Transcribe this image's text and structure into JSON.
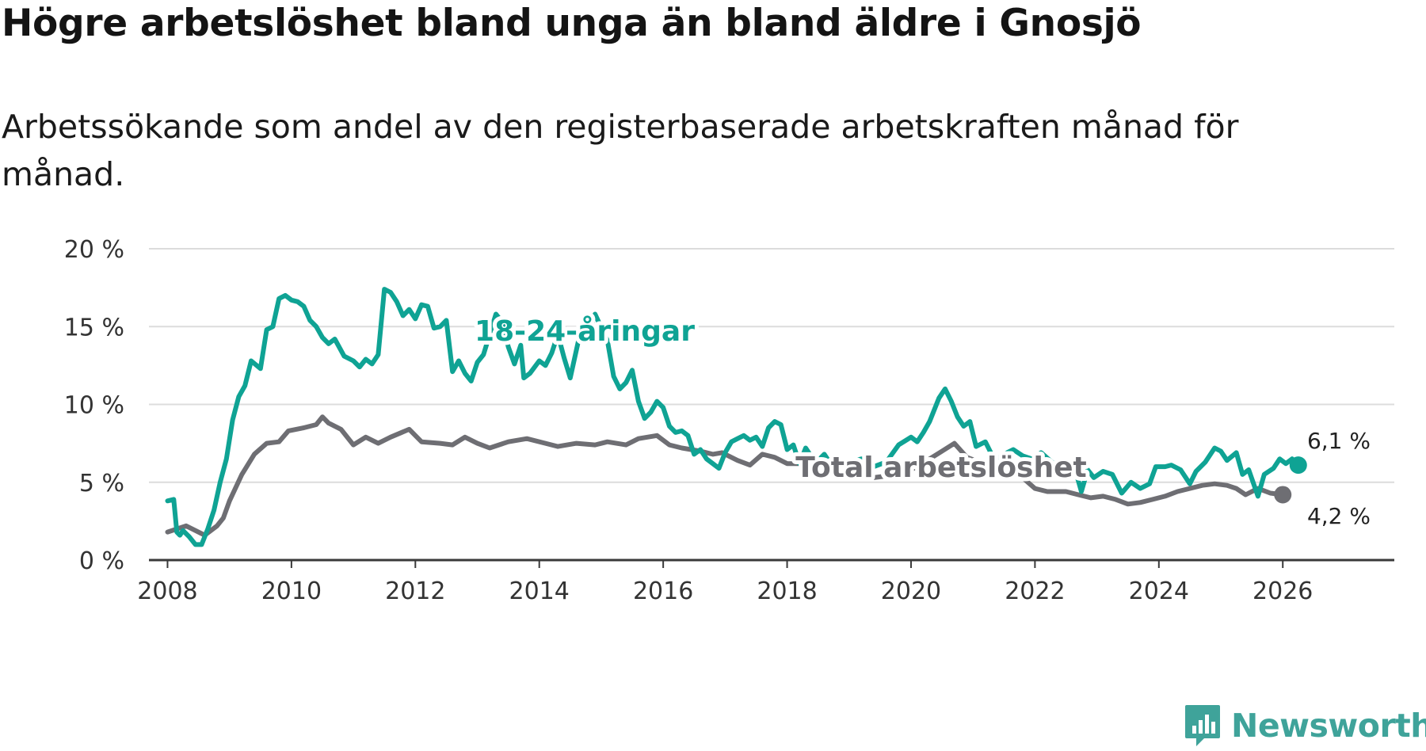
{
  "title": "Högre arbetslöshet bland unga än bland äldre i Gnosjö",
  "subtitle": "Arbetssökande som andel av den registerbaserade arbetskraften månad för månad.",
  "brand": {
    "name": "Newsworthy",
    "color": "#3fa39a"
  },
  "chart_data": {
    "type": "line",
    "title": "Högre arbetslöshet bland unga än bland äldre i Gnosjö",
    "xlabel": "",
    "ylabel": "",
    "xlim": [
      2007.7,
      2027.8
    ],
    "ylim": [
      0,
      20
    ],
    "grid": true,
    "x_ticks": [
      2008,
      2010,
      2012,
      2014,
      2016,
      2018,
      2020,
      2022,
      2024,
      2026
    ],
    "x_tick_labels": [
      "2008",
      "2010",
      "2012",
      "2014",
      "2016",
      "2018",
      "2020",
      "2022",
      "2024",
      "2026"
    ],
    "y_ticks": [
      0,
      5,
      10,
      15,
      20
    ],
    "y_tick_labels": [
      "0 %",
      "5 %",
      "10 %",
      "15 %",
      "20 %"
    ],
    "series": [
      {
        "name": "Total arbetslöshet",
        "label": "Total arbetslöshet",
        "color": "#6e6e73",
        "end_label": "4,2 %",
        "points": [
          [
            2008.0,
            1.8
          ],
          [
            2008.3,
            2.2
          ],
          [
            2008.6,
            1.6
          ],
          [
            2008.8,
            2.2
          ],
          [
            2008.9,
            2.7
          ],
          [
            2009.0,
            3.8
          ],
          [
            2009.2,
            5.5
          ],
          [
            2009.4,
            6.8
          ],
          [
            2009.6,
            7.5
          ],
          [
            2009.8,
            7.6
          ],
          [
            2009.95,
            8.3
          ],
          [
            2010.2,
            8.5
          ],
          [
            2010.4,
            8.7
          ],
          [
            2010.5,
            9.2
          ],
          [
            2010.6,
            8.8
          ],
          [
            2010.8,
            8.4
          ],
          [
            2011.0,
            7.4
          ],
          [
            2011.2,
            7.9
          ],
          [
            2011.4,
            7.5
          ],
          [
            2011.6,
            7.9
          ],
          [
            2011.9,
            8.4
          ],
          [
            2012.1,
            7.6
          ],
          [
            2012.4,
            7.5
          ],
          [
            2012.6,
            7.4
          ],
          [
            2012.8,
            7.9
          ],
          [
            2013.0,
            7.5
          ],
          [
            2013.2,
            7.2
          ],
          [
            2013.5,
            7.6
          ],
          [
            2013.8,
            7.8
          ],
          [
            2014.1,
            7.5
          ],
          [
            2014.3,
            7.3
          ],
          [
            2014.6,
            7.5
          ],
          [
            2014.9,
            7.4
          ],
          [
            2015.1,
            7.6
          ],
          [
            2015.4,
            7.4
          ],
          [
            2015.6,
            7.8
          ],
          [
            2015.9,
            8.0
          ],
          [
            2016.1,
            7.4
          ],
          [
            2016.3,
            7.2
          ],
          [
            2016.6,
            7.0
          ],
          [
            2016.8,
            6.8
          ],
          [
            2016.95,
            6.9
          ],
          [
            2017.2,
            6.4
          ],
          [
            2017.4,
            6.1
          ],
          [
            2017.6,
            6.8
          ],
          [
            2017.8,
            6.6
          ],
          [
            2018.0,
            6.2
          ],
          [
            2018.2,
            6.2
          ],
          [
            2018.5,
            5.9
          ],
          [
            2018.7,
            5.8
          ],
          [
            2019.0,
            5.6
          ],
          [
            2019.2,
            5.4
          ],
          [
            2019.4,
            5.3
          ],
          [
            2019.6,
            5.4
          ],
          [
            2019.9,
            5.6
          ],
          [
            2020.1,
            6.0
          ],
          [
            2020.3,
            6.5
          ],
          [
            2020.5,
            7.0
          ],
          [
            2020.7,
            7.5
          ],
          [
            2020.9,
            6.6
          ],
          [
            2021.1,
            6.3
          ],
          [
            2021.3,
            5.8
          ],
          [
            2021.6,
            5.7
          ],
          [
            2021.8,
            5.3
          ],
          [
            2022.0,
            4.6
          ],
          [
            2022.2,
            4.4
          ],
          [
            2022.5,
            4.4
          ],
          [
            2022.7,
            4.2
          ],
          [
            2022.9,
            4.0
          ],
          [
            2023.1,
            4.1
          ],
          [
            2023.3,
            3.9
          ],
          [
            2023.5,
            3.6
          ],
          [
            2023.7,
            3.7
          ],
          [
            2023.9,
            3.9
          ],
          [
            2024.1,
            4.1
          ],
          [
            2024.3,
            4.4
          ],
          [
            2024.5,
            4.6
          ],
          [
            2024.7,
            4.8
          ],
          [
            2024.9,
            4.9
          ],
          [
            2025.1,
            4.8
          ],
          [
            2025.25,
            4.6
          ],
          [
            2025.4,
            4.2
          ],
          [
            2025.6,
            4.6
          ],
          [
            2025.8,
            4.3
          ],
          [
            2026.0,
            4.2
          ]
        ]
      },
      {
        "name": "18-24-åringar",
        "label": "18-24-åringar",
        "color": "#0fa394",
        "end_label": "6,1 %",
        "points": [
          [
            2008.0,
            3.8
          ],
          [
            2008.1,
            3.9
          ],
          [
            2008.15,
            1.8
          ],
          [
            2008.2,
            1.6
          ],
          [
            2008.25,
            1.9
          ],
          [
            2008.35,
            1.5
          ],
          [
            2008.45,
            1.0
          ],
          [
            2008.55,
            1.0
          ],
          [
            2008.65,
            2.0
          ],
          [
            2008.75,
            3.2
          ],
          [
            2008.85,
            5.0
          ],
          [
            2008.95,
            6.5
          ],
          [
            2009.05,
            9.0
          ],
          [
            2009.15,
            10.5
          ],
          [
            2009.25,
            11.2
          ],
          [
            2009.35,
            12.8
          ],
          [
            2009.5,
            12.3
          ],
          [
            2009.6,
            14.8
          ],
          [
            2009.7,
            15.0
          ],
          [
            2009.8,
            16.8
          ],
          [
            2009.9,
            17.0
          ],
          [
            2010.0,
            16.7
          ],
          [
            2010.1,
            16.6
          ],
          [
            2010.2,
            16.3
          ],
          [
            2010.3,
            15.4
          ],
          [
            2010.4,
            15.0
          ],
          [
            2010.5,
            14.3
          ],
          [
            2010.6,
            13.9
          ],
          [
            2010.7,
            14.2
          ],
          [
            2010.85,
            13.1
          ],
          [
            2011.0,
            12.8
          ],
          [
            2011.1,
            12.4
          ],
          [
            2011.2,
            12.9
          ],
          [
            2011.3,
            12.6
          ],
          [
            2011.4,
            13.2
          ],
          [
            2011.5,
            17.4
          ],
          [
            2011.6,
            17.2
          ],
          [
            2011.7,
            16.6
          ],
          [
            2011.8,
            15.7
          ],
          [
            2011.9,
            16.1
          ],
          [
            2012.0,
            15.5
          ],
          [
            2012.1,
            16.4
          ],
          [
            2012.2,
            16.3
          ],
          [
            2012.3,
            14.9
          ],
          [
            2012.4,
            15.0
          ],
          [
            2012.5,
            15.4
          ],
          [
            2012.6,
            12.1
          ],
          [
            2012.7,
            12.8
          ],
          [
            2012.8,
            12.0
          ],
          [
            2012.9,
            11.5
          ],
          [
            2013.0,
            12.7
          ],
          [
            2013.1,
            13.2
          ],
          [
            2013.2,
            14.5
          ],
          [
            2013.3,
            15.8
          ],
          [
            2013.4,
            15.3
          ],
          [
            2013.5,
            13.7
          ],
          [
            2013.6,
            12.6
          ],
          [
            2013.7,
            13.8
          ],
          [
            2013.75,
            11.7
          ],
          [
            2013.85,
            12.0
          ],
          [
            2014.0,
            12.8
          ],
          [
            2014.1,
            12.5
          ],
          [
            2014.2,
            13.3
          ],
          [
            2014.3,
            14.5
          ],
          [
            2014.4,
            13.0
          ],
          [
            2014.5,
            11.7
          ],
          [
            2014.6,
            13.5
          ],
          [
            2014.7,
            15.3
          ],
          [
            2014.8,
            14.6
          ],
          [
            2014.9,
            15.8
          ],
          [
            2015.1,
            14.1
          ],
          [
            2015.2,
            11.8
          ],
          [
            2015.3,
            11.0
          ],
          [
            2015.4,
            11.4
          ],
          [
            2015.5,
            12.2
          ],
          [
            2015.6,
            10.2
          ],
          [
            2015.7,
            9.1
          ],
          [
            2015.8,
            9.5
          ],
          [
            2015.9,
            10.2
          ],
          [
            2016.0,
            9.8
          ],
          [
            2016.1,
            8.6
          ],
          [
            2016.2,
            8.2
          ],
          [
            2016.3,
            8.3
          ],
          [
            2016.4,
            8.0
          ],
          [
            2016.5,
            6.8
          ],
          [
            2016.6,
            7.1
          ],
          [
            2016.7,
            6.5
          ],
          [
            2016.8,
            6.2
          ],
          [
            2016.9,
            5.9
          ],
          [
            2017.0,
            6.9
          ],
          [
            2017.1,
            7.6
          ],
          [
            2017.2,
            7.8
          ],
          [
            2017.3,
            8.0
          ],
          [
            2017.4,
            7.7
          ],
          [
            2017.5,
            7.9
          ],
          [
            2017.6,
            7.3
          ],
          [
            2017.7,
            8.5
          ],
          [
            2017.8,
            8.9
          ],
          [
            2017.9,
            8.7
          ],
          [
            2018.0,
            7.1
          ],
          [
            2018.1,
            7.4
          ],
          [
            2018.2,
            6.2
          ],
          [
            2018.3,
            7.2
          ],
          [
            2018.4,
            6.6
          ],
          [
            2018.5,
            6.4
          ],
          [
            2018.6,
            6.8
          ],
          [
            2018.7,
            6.2
          ],
          [
            2018.8,
            6.6
          ],
          [
            2018.9,
            5.8
          ],
          [
            2019.0,
            6.3
          ],
          [
            2019.2,
            6.5
          ],
          [
            2019.4,
            6.0
          ],
          [
            2019.6,
            6.3
          ],
          [
            2019.8,
            7.4
          ],
          [
            2020.0,
            7.9
          ],
          [
            2020.1,
            7.6
          ],
          [
            2020.2,
            8.2
          ],
          [
            2020.3,
            8.9
          ],
          [
            2020.45,
            10.4
          ],
          [
            2020.55,
            11.0
          ],
          [
            2020.65,
            10.2
          ],
          [
            2020.75,
            9.2
          ],
          [
            2020.85,
            8.6
          ],
          [
            2020.95,
            8.9
          ],
          [
            2021.05,
            7.3
          ],
          [
            2021.2,
            7.6
          ],
          [
            2021.35,
            6.4
          ],
          [
            2021.5,
            6.8
          ],
          [
            2021.65,
            7.1
          ],
          [
            2021.8,
            6.7
          ],
          [
            2021.95,
            6.5
          ],
          [
            2022.1,
            6.9
          ],
          [
            2022.3,
            6.2
          ],
          [
            2022.5,
            5.7
          ],
          [
            2022.65,
            5.8
          ],
          [
            2022.75,
            4.4
          ],
          [
            2022.85,
            5.8
          ],
          [
            2022.95,
            5.3
          ],
          [
            2023.1,
            5.7
          ],
          [
            2023.25,
            5.5
          ],
          [
            2023.4,
            4.3
          ],
          [
            2023.55,
            5.0
          ],
          [
            2023.7,
            4.6
          ],
          [
            2023.85,
            4.9
          ],
          [
            2023.95,
            6.0
          ],
          [
            2024.1,
            6.0
          ],
          [
            2024.2,
            6.1
          ],
          [
            2024.35,
            5.8
          ],
          [
            2024.5,
            4.9
          ],
          [
            2024.6,
            5.7
          ],
          [
            2024.75,
            6.3
          ],
          [
            2024.9,
            7.2
          ],
          [
            2025.0,
            7.0
          ],
          [
            2025.1,
            6.4
          ],
          [
            2025.25,
            6.9
          ],
          [
            2025.35,
            5.5
          ],
          [
            2025.45,
            5.8
          ],
          [
            2025.6,
            4.1
          ],
          [
            2025.7,
            5.5
          ],
          [
            2025.85,
            5.9
          ],
          [
            2025.95,
            6.5
          ],
          [
            2026.05,
            6.2
          ],
          [
            2026.15,
            6.5
          ],
          [
            2026.25,
            6.1
          ]
        ]
      }
    ]
  }
}
